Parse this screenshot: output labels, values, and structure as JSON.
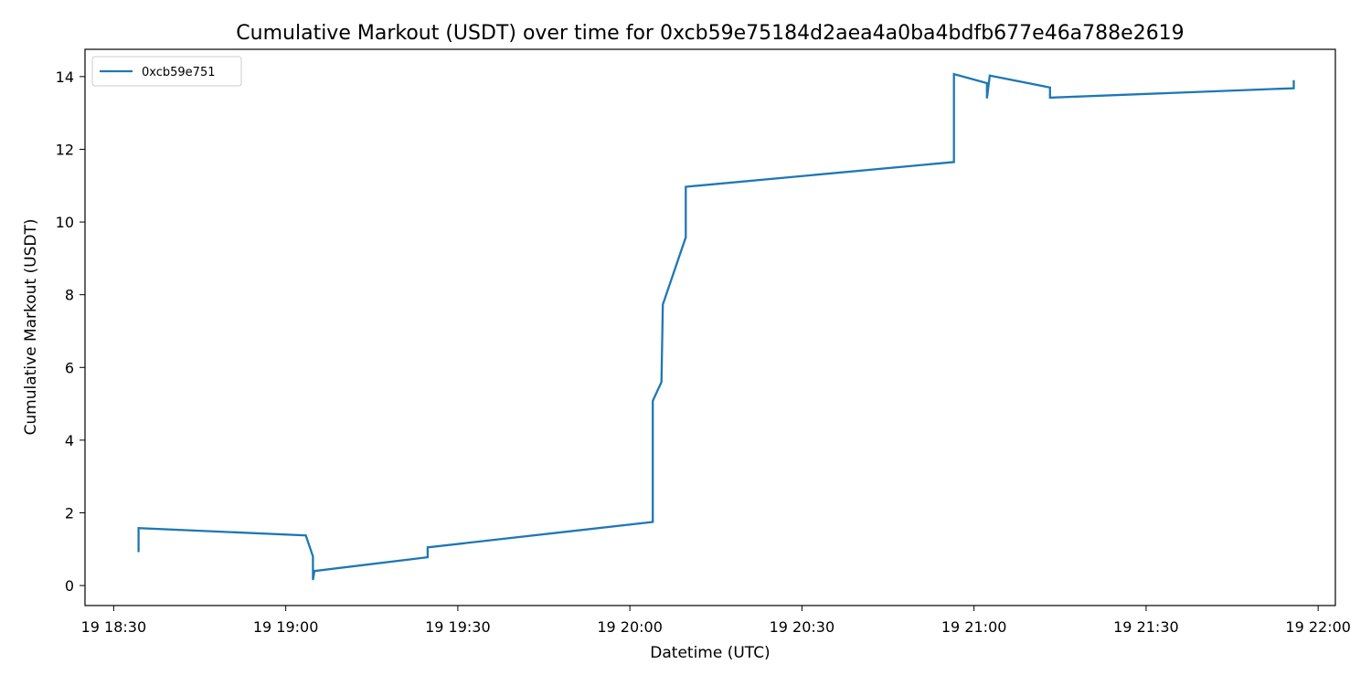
{
  "chart_data": {
    "type": "line",
    "title": "Cumulative Markout (USDT) over time for 0xcb59e75184d2aea4a0ba4bdfb677e46a788e2619",
    "xlabel": "Datetime (UTC)",
    "ylabel": "Cumulative Markout (USDT)",
    "xlim": [
      "18:25",
      "22:03"
    ],
    "ylim": [
      -0.55,
      14.75
    ],
    "x_ticks": [
      {
        "value": "18:30",
        "label": "19 18:30"
      },
      {
        "value": "19:00",
        "label": "19 19:00"
      },
      {
        "value": "19:30",
        "label": "19 19:30"
      },
      {
        "value": "20:00",
        "label": "19 20:00"
      },
      {
        "value": "20:30",
        "label": "19 20:30"
      },
      {
        "value": "21:00",
        "label": "19 21:00"
      },
      {
        "value": "21:30",
        "label": "19 21:30"
      },
      {
        "value": "22:00",
        "label": "19 22:00"
      }
    ],
    "y_ticks": [
      0,
      2,
      4,
      6,
      8,
      10,
      12,
      14
    ],
    "grid": false,
    "legend_position": "top-left",
    "series": [
      {
        "name": "0xcb59e751",
        "color": "#1f77b4",
        "points": [
          [
            "18:34:20",
            0.92
          ],
          [
            "18:34:20",
            1.58
          ],
          [
            "19:03:30",
            1.38
          ],
          [
            "19:04:45",
            0.8
          ],
          [
            "19:04:45",
            0.15
          ],
          [
            "19:05:00",
            0.4
          ],
          [
            "19:24:45",
            0.78
          ],
          [
            "19:24:45",
            1.05
          ],
          [
            "20:04:00",
            1.75
          ],
          [
            "20:04:00",
            5.08
          ],
          [
            "20:05:30",
            5.6
          ],
          [
            "20:05:45",
            7.73
          ],
          [
            "20:09:45",
            9.58
          ],
          [
            "20:09:45",
            10.97
          ],
          [
            "20:56:30",
            11.65
          ],
          [
            "20:56:30",
            14.07
          ],
          [
            "21:02:15",
            13.82
          ],
          [
            "21:02:15",
            13.4
          ],
          [
            "21:02:45",
            14.03
          ],
          [
            "21:13:15",
            13.7
          ],
          [
            "21:13:15",
            13.42
          ],
          [
            "21:55:45",
            13.68
          ],
          [
            "21:55:45",
            13.9
          ]
        ]
      }
    ]
  }
}
